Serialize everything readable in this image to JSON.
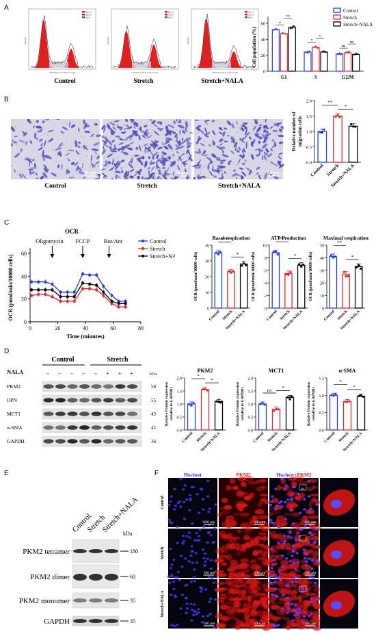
{
  "panels": {
    "A": "A",
    "B": "B",
    "C": "C",
    "D": "D",
    "E": "E",
    "F": "F"
  },
  "groups": [
    "Control",
    "Stretch",
    "Stretch+NALA"
  ],
  "colors": {
    "control": "#1f3ee0",
    "stretch": "#e3262b",
    "nala": "#000000",
    "cells": "#e02020",
    "stain": "#4a4cb8",
    "hoechst": "#2b2bd8",
    "pkm2": "#e01818"
  },
  "panelA": {
    "flow_y_label": "Number",
    "flow_x_label": "Channels (FL2-A-FL2-Lin)",
    "flow_legend": [
      "Dip G1",
      "Dip G2",
      "Dip S"
    ]
  },
  "panelB": {
    "scale_bar": "50 μm"
  },
  "panelC": {
    "ocr_title": "OCR",
    "drugs": [
      "Oligomycin",
      "FCCP",
      "Rot/Ant"
    ]
  },
  "panelD": {
    "group_labels": [
      "Control",
      "Stretch"
    ],
    "nala_label": "NALA",
    "nala_marks": [
      "−",
      "−",
      "−",
      "−",
      "−",
      "+",
      "+",
      "+"
    ],
    "kda_label": "kDa",
    "bands": [
      {
        "name": "PKM2",
        "kda": "58"
      },
      {
        "name": "OPN",
        "kda": "55"
      },
      {
        "name": "MCT1",
        "kda": "43"
      },
      {
        "name": "α-SMA",
        "kda": "42"
      },
      {
        "name": "GAPDH",
        "kda": "36"
      }
    ]
  },
  "panelE": {
    "kda_label": "kDa",
    "bands": [
      {
        "name": "PKM2 tetramer",
        "kda": "180"
      },
      {
        "name": "PKM2 dimer",
        "kda": "60"
      },
      {
        "name": "PKM2 monomer",
        "kda": "35"
      },
      {
        "name": "GAPDH",
        "kda": "35"
      }
    ]
  },
  "panelF": {
    "columns": [
      "Hochest",
      "PKM2",
      "Hochest+",
      "PKM2"
    ],
    "rows": [
      "Control",
      "Stretch",
      "Stretch+NALA"
    ],
    "scale_bar": "100 μm"
  },
  "chart_data": [
    {
      "id": "cell-population",
      "type": "bar",
      "ylabel": "Cell population (%)",
      "categories": [
        "G1",
        "S",
        "G2/M"
      ],
      "series": [
        {
          "name": "Control",
          "values": [
            52,
            24,
            22
          ]
        },
        {
          "name": "Stretch",
          "values": [
            47,
            30,
            23
          ]
        },
        {
          "name": "Stretch+NALA",
          "values": [
            55,
            24,
            21
          ]
        }
      ],
      "ylim": [
        0,
        60
      ],
      "yticks": [
        0,
        20,
        40,
        60
      ],
      "significance": [
        {
          "cat": 0,
          "from": 0,
          "to": 1,
          "label": "*"
        },
        {
          "cat": 0,
          "from": 1,
          "to": 2,
          "label": "**"
        },
        {
          "cat": 1,
          "from": 0,
          "to": 1,
          "label": "*"
        },
        {
          "cat": 1,
          "from": 1,
          "to": 2,
          "label": "*"
        },
        {
          "cat": 2,
          "from": 0,
          "to": 1,
          "label": "ns"
        },
        {
          "cat": 2,
          "from": 1,
          "to": 2,
          "label": "ns"
        }
      ]
    },
    {
      "id": "migration",
      "type": "bar",
      "ylabel": "Relative number of migration cells",
      "categories": [
        "Control",
        "Stretch",
        "Stretch+NALA"
      ],
      "values": [
        1.0,
        1.5,
        1.17
      ],
      "ylim": [
        0,
        2.0
      ],
      "yticks": [
        0.0,
        0.5,
        1.0,
        1.5,
        2.0
      ],
      "significance": [
        {
          "from": 0,
          "to": 1,
          "label": "**"
        },
        {
          "from": 1,
          "to": 2,
          "label": "*"
        }
      ]
    },
    {
      "id": "ocr-timecourse",
      "type": "line",
      "title": "OCR",
      "xlabel": "Time (minutes)",
      "ylabel": "OCR (pmol/min/10000 cells)",
      "xlim": [
        0,
        80
      ],
      "ylim": [
        0,
        60
      ],
      "xticks": [
        0,
        20,
        40,
        60,
        80
      ],
      "yticks": [
        0,
        20,
        40,
        60
      ],
      "x": [
        1,
        6,
        11,
        16,
        22,
        27,
        32,
        38,
        43,
        48,
        53,
        59,
        64,
        69
      ],
      "series": [
        {
          "name": "Control",
          "values": [
            35,
            35,
            35,
            33,
            26,
            26,
            26,
            42,
            41,
            41,
            31,
            23,
            18,
            18
          ]
        },
        {
          "name": "Stretch",
          "values": [
            23,
            24,
            24,
            22,
            18,
            18,
            18,
            29,
            29,
            28,
            23,
            16,
            13,
            13
          ]
        },
        {
          "name": "Stretch+NALA",
          "values": [
            28,
            28,
            28,
            28,
            22,
            22,
            22,
            34,
            33,
            32,
            26,
            18,
            16,
            16
          ]
        }
      ]
    },
    {
      "id": "basal-respiration",
      "type": "bar",
      "title": "Basal respiration",
      "ylabel": "OCR (pmol/min/10000 cells)",
      "categories": [
        "Control",
        "Stretch",
        "Stretch+NALA"
      ],
      "values": [
        35,
        23,
        28
      ],
      "ylim": [
        0,
        40
      ],
      "yticks": [
        0,
        10,
        20,
        30,
        40
      ],
      "significance": [
        {
          "from": 0,
          "to": 1,
          "label": "***"
        },
        {
          "from": 1,
          "to": 2,
          "label": "*"
        }
      ]
    },
    {
      "id": "atp-production",
      "type": "bar",
      "title": "ATP Production",
      "ylabel": "OCR (pmol/min/10000 cells)",
      "categories": [
        "Control",
        "Stretch",
        "Stretch+NALA"
      ],
      "values": [
        8.8,
        5.5,
        6.8
      ],
      "ylim": [
        0,
        10
      ],
      "yticks": [
        0,
        2,
        4,
        6,
        8,
        10
      ],
      "significance": [
        {
          "from": 0,
          "to": 1,
          "label": "***"
        },
        {
          "from": 1,
          "to": 2,
          "label": "*"
        }
      ]
    },
    {
      "id": "maximal-respiration",
      "type": "bar",
      "title": "Maximal respiration",
      "ylabel": "OCR (pmol/min/10000 cells)",
      "categories": [
        "Control",
        "Stretch",
        "Stretch+NALA"
      ],
      "values": [
        41,
        27,
        33
      ],
      "ylim": [
        0,
        50
      ],
      "yticks": [
        0,
        10,
        20,
        30,
        40,
        50
      ],
      "significance": [
        {
          "from": 0,
          "to": 1,
          "label": "**"
        },
        {
          "from": 1,
          "to": 2,
          "label": "*"
        }
      ]
    },
    {
      "id": "pkm2-expression",
      "type": "bar",
      "title": "PKM2",
      "ylabel": "Relative Protein expression (relative to GAPDH)",
      "categories": [
        "Control",
        "Stretch",
        "Stretch+NALA"
      ],
      "values": [
        1.0,
        1.55,
        1.1
      ],
      "ylim": [
        0,
        2.0
      ],
      "yticks": [
        0.0,
        0.5,
        1.0,
        1.5,
        2.0
      ],
      "significance": [
        {
          "from": 0,
          "to": 1,
          "label": "*"
        },
        {
          "from": 1,
          "to": 2,
          "label": "*"
        }
      ]
    },
    {
      "id": "mct1-expression",
      "type": "bar",
      "title": "MCT1",
      "ylabel": "Relative Protein expression (relative to GAPDH)",
      "categories": [
        "Control",
        "Stretch",
        "Stretch+NALA"
      ],
      "values": [
        1.0,
        0.8,
        1.25
      ],
      "ylim": [
        0,
        2.0
      ],
      "yticks": [
        0.0,
        0.5,
        1.0,
        1.5,
        2.0
      ],
      "significance": [
        {
          "from": 0,
          "to": 1,
          "label": "ns"
        },
        {
          "from": 1,
          "to": 2,
          "label": "*"
        }
      ]
    },
    {
      "id": "asma-expression",
      "type": "bar",
      "title": "α-SMA",
      "ylabel": "Relative Protein expression (relative to GAPDH)",
      "categories": [
        "Control",
        "Stretch",
        "Stretch+NALA"
      ],
      "values": [
        1.0,
        0.82,
        0.97
      ],
      "ylim": [
        0,
        1.5
      ],
      "yticks": [
        0.0,
        0.5,
        1.0,
        1.5
      ],
      "significance": [
        {
          "from": 0,
          "to": 1,
          "label": "*"
        },
        {
          "from": 1,
          "to": 2,
          "label": "*"
        }
      ]
    }
  ]
}
